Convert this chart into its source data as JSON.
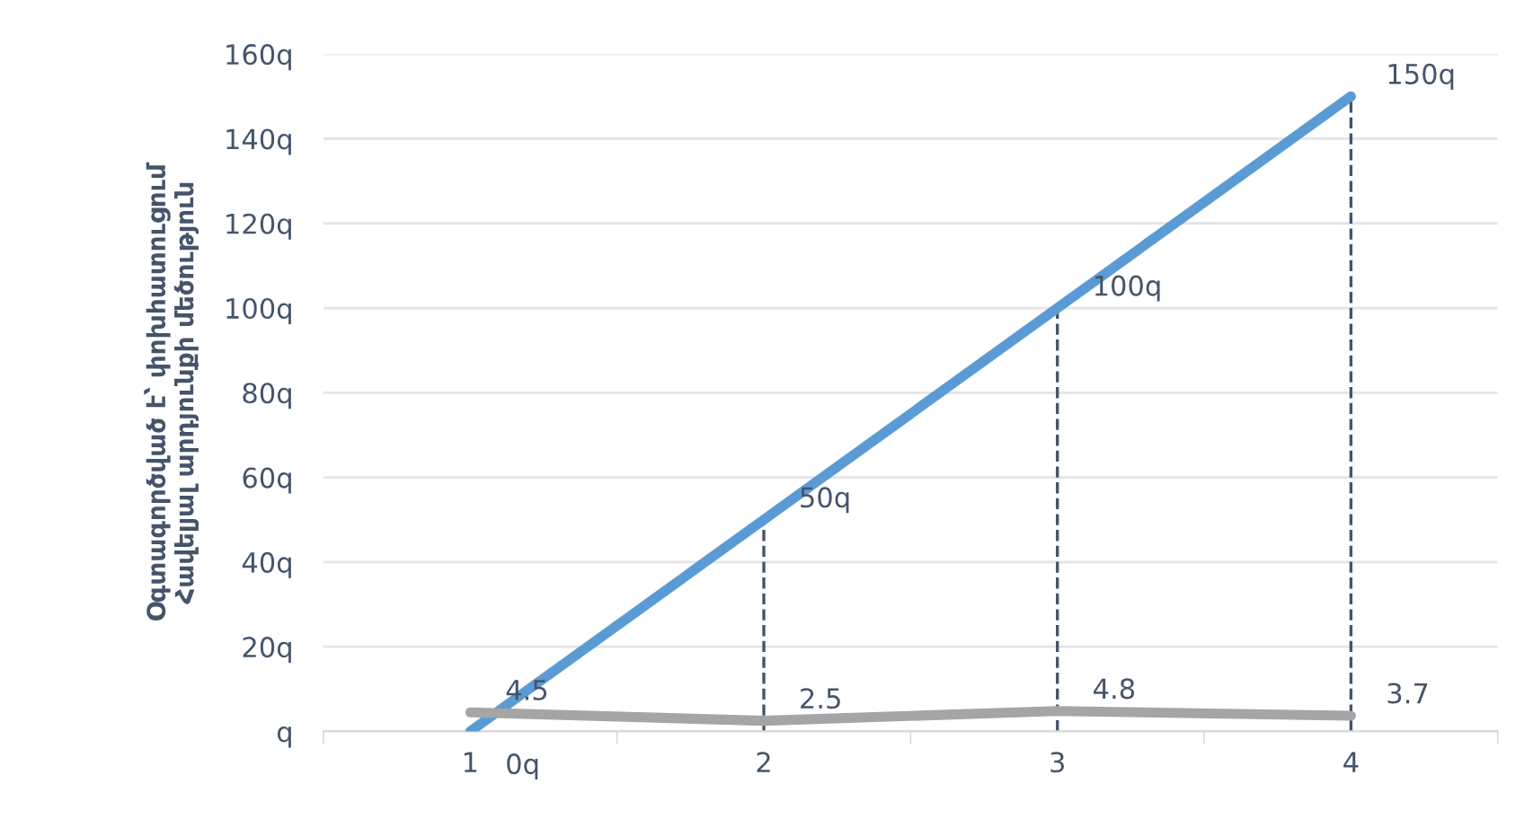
{
  "chart_data": {
    "type": "line",
    "ylabel": "Օգտագործված է՝ փոխհատուցում\nՀավելյալ արդյունքի մեծություն",
    "categories": [
      "1",
      "2",
      "3",
      "4"
    ],
    "series": [
      {
        "color": "#5b9bd5",
        "values": [
          0,
          50,
          100,
          150
        ],
        "value_labels": [
          "0q",
          "50q",
          "100q",
          "150q"
        ]
      },
      {
        "color": "#a5a5a5",
        "values": [
          4.5,
          2.5,
          4.8,
          3.7
        ],
        "value_labels": [
          "4.5",
          "2.5",
          "4.8",
          "3.7"
        ]
      }
    ],
    "ylim": [
      0,
      160
    ],
    "yticks": [
      {
        "value": 0,
        "label": "q"
      },
      {
        "value": 20,
        "label": "20q"
      },
      {
        "value": 40,
        "label": "40q"
      },
      {
        "value": 60,
        "label": "60q"
      },
      {
        "value": 80,
        "label": "80q"
      },
      {
        "value": 100,
        "label": "100q"
      },
      {
        "value": 120,
        "label": "120q"
      },
      {
        "value": 140,
        "label": "140q"
      },
      {
        "value": 160,
        "label": "160q"
      }
    ],
    "ref_lines": [
      {
        "axis": "x",
        "value": "2",
        "color": "#44546a",
        "line_style": "dashed"
      },
      {
        "axis": "x",
        "value": "3",
        "color": "#44546a",
        "line_style": "dashed"
      },
      {
        "axis": "x",
        "value": "4",
        "color": "#44546a",
        "line_style": "dashed"
      }
    ],
    "grid": "y",
    "legend": false,
    "marker": "none",
    "line_style": "solid"
  }
}
